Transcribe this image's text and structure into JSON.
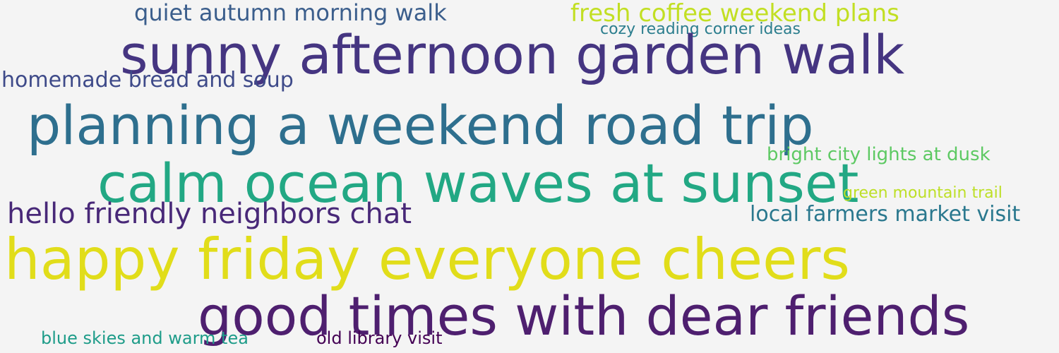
{
  "words": [
    {
      "text": "quiet autumn morning walk",
      "color": "#3b5e8c"
    },
    {
      "text": "fresh coffee  weekend plans",
      "color": "#c2df23"
    },
    {
      "text": "cozy reading corner ideas",
      "color": "#2c7e8e"
    },
    {
      "text": "sunny afternoon garden walk",
      "color": "#453581"
    },
    {
      "text": "homemade bread and soup",
      "color": "#3e4a89"
    },
    {
      "text": "planning a weekend road trip",
      "color": "#2e6f8e"
    },
    {
      "text": "bright city lights at dusk",
      "color": "#5dc963"
    },
    {
      "text": "calm ocean waves at sunset",
      "color": "#22a884"
    },
    {
      "text": "green mountain trail",
      "color": "#bddf26"
    },
    {
      "text": "hello  friendly neighbors chat",
      "color": "#482878"
    },
    {
      "text": "local farmers market visit",
      "color": "#2a788e"
    },
    {
      "text": "happy friday everyone cheers",
      "color": "#e1dd1a"
    },
    {
      "text": "good times with dear friends",
      "color": "#4e1f6f"
    },
    {
      "text": "blue skies and warm tea",
      "color": "#1e9c89"
    },
    {
      "text": "old library visit",
      "color": "#440154"
    }
  ]
}
